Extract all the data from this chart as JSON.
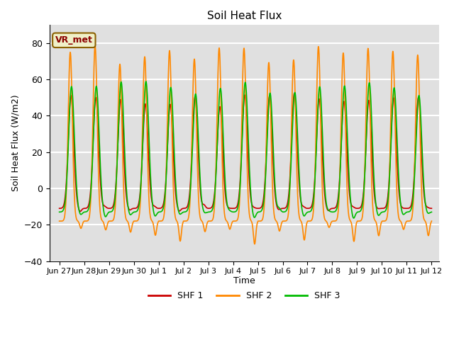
{
  "title": "Soil Heat Flux",
  "ylabel": "Soil Heat Flux (W/m2)",
  "xlabel": "Time",
  "ylim": [
    -40,
    90
  ],
  "yticks": [
    -40,
    -20,
    0,
    20,
    40,
    60,
    80
  ],
  "bg_color": "#e0e0e0",
  "grid_color": "white",
  "colors": {
    "SHF 1": "#cc0000",
    "SHF 2": "#ff8800",
    "SHF 3": "#00bb00"
  },
  "annotation": "VR_met",
  "xtick_labels": [
    "Jun 27",
    "Jun 28",
    "Jun 29",
    "Jun 30",
    "Jul 1",
    "Jul 2",
    "Jul 3",
    "Jul 4",
    "Jul 5",
    "Jul 6",
    "Jul 7",
    "Jul 8",
    "Jul 9",
    "Jul 10",
    "Jul 11",
    "Jul 12"
  ],
  "n_days": 15,
  "pts_per_day": 96
}
